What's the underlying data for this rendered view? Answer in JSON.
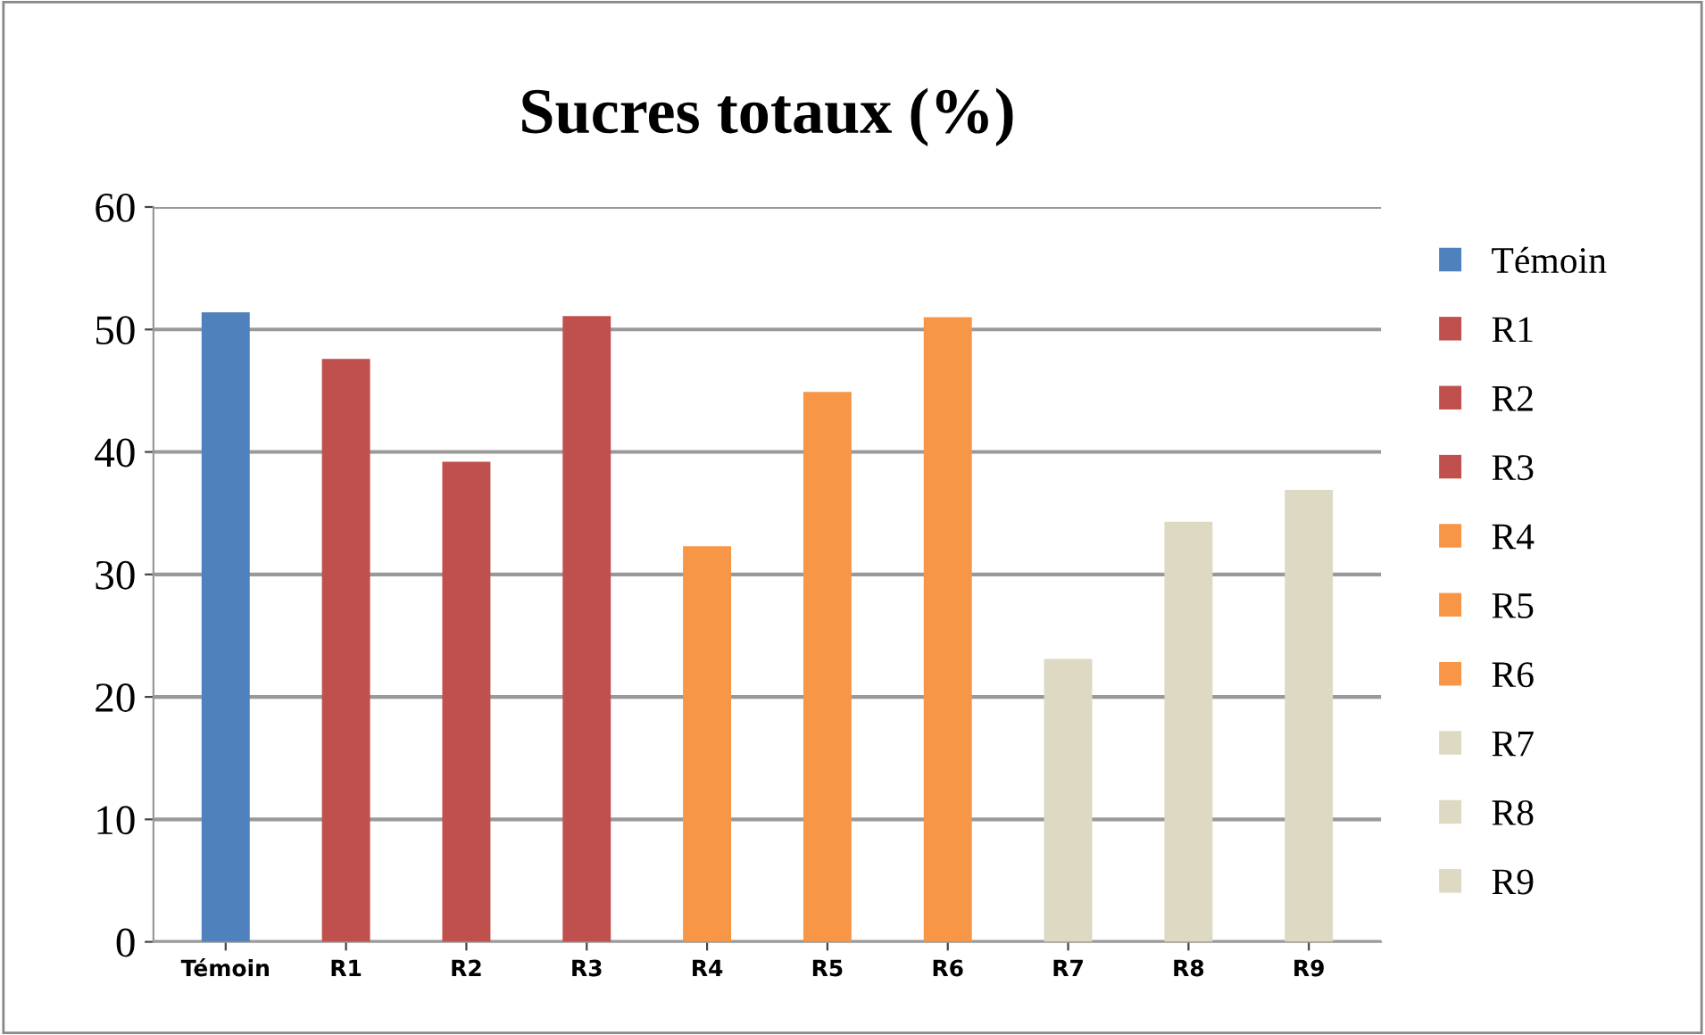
{
  "chart_data": {
    "type": "bar",
    "title": "Sucres totaux (%)",
    "categories": [
      "Témoin",
      "R1",
      "R2",
      "R3",
      "R4",
      "R5",
      "R6",
      "R7",
      "R8",
      "R9"
    ],
    "series": [
      {
        "name": "Témoin",
        "color": "#4f81bd",
        "values": [
          51.4,
          null,
          null,
          null,
          null,
          null,
          null,
          null,
          null,
          null
        ]
      },
      {
        "name": "R1",
        "color": "#c0504d",
        "values": [
          null,
          47.6,
          null,
          null,
          null,
          null,
          null,
          null,
          null,
          null
        ]
      },
      {
        "name": "R2",
        "color": "#c0504d",
        "values": [
          null,
          null,
          39.2,
          null,
          null,
          null,
          null,
          null,
          null,
          null
        ]
      },
      {
        "name": "R3",
        "color": "#c0504d",
        "values": [
          null,
          null,
          null,
          51.1,
          null,
          null,
          null,
          null,
          null,
          null
        ]
      },
      {
        "name": "R4",
        "color": "#f79646",
        "values": [
          null,
          null,
          null,
          null,
          32.3,
          null,
          null,
          null,
          null,
          null
        ]
      },
      {
        "name": "R5",
        "color": "#f79646",
        "values": [
          null,
          null,
          null,
          null,
          null,
          44.9,
          null,
          null,
          null,
          null
        ]
      },
      {
        "name": "R6",
        "color": "#f79646",
        "values": [
          null,
          null,
          null,
          null,
          null,
          null,
          51.0,
          null,
          null,
          null
        ]
      },
      {
        "name": "R7",
        "color": "#ddd9c3",
        "values": [
          null,
          null,
          null,
          null,
          null,
          null,
          null,
          23.1,
          null,
          null
        ]
      },
      {
        "name": "R8",
        "color": "#ddd9c3",
        "values": [
          null,
          null,
          null,
          null,
          null,
          null,
          null,
          null,
          34.3,
          null
        ]
      },
      {
        "name": "R9",
        "color": "#ddd9c3",
        "values": [
          null,
          null,
          null,
          null,
          null,
          null,
          null,
          null,
          null,
          36.9
        ]
      }
    ],
    "ylim": [
      0,
      60
    ],
    "yticks": [
      0,
      10,
      20,
      30,
      40,
      50,
      60
    ],
    "grid": "y",
    "legend": "right"
  }
}
